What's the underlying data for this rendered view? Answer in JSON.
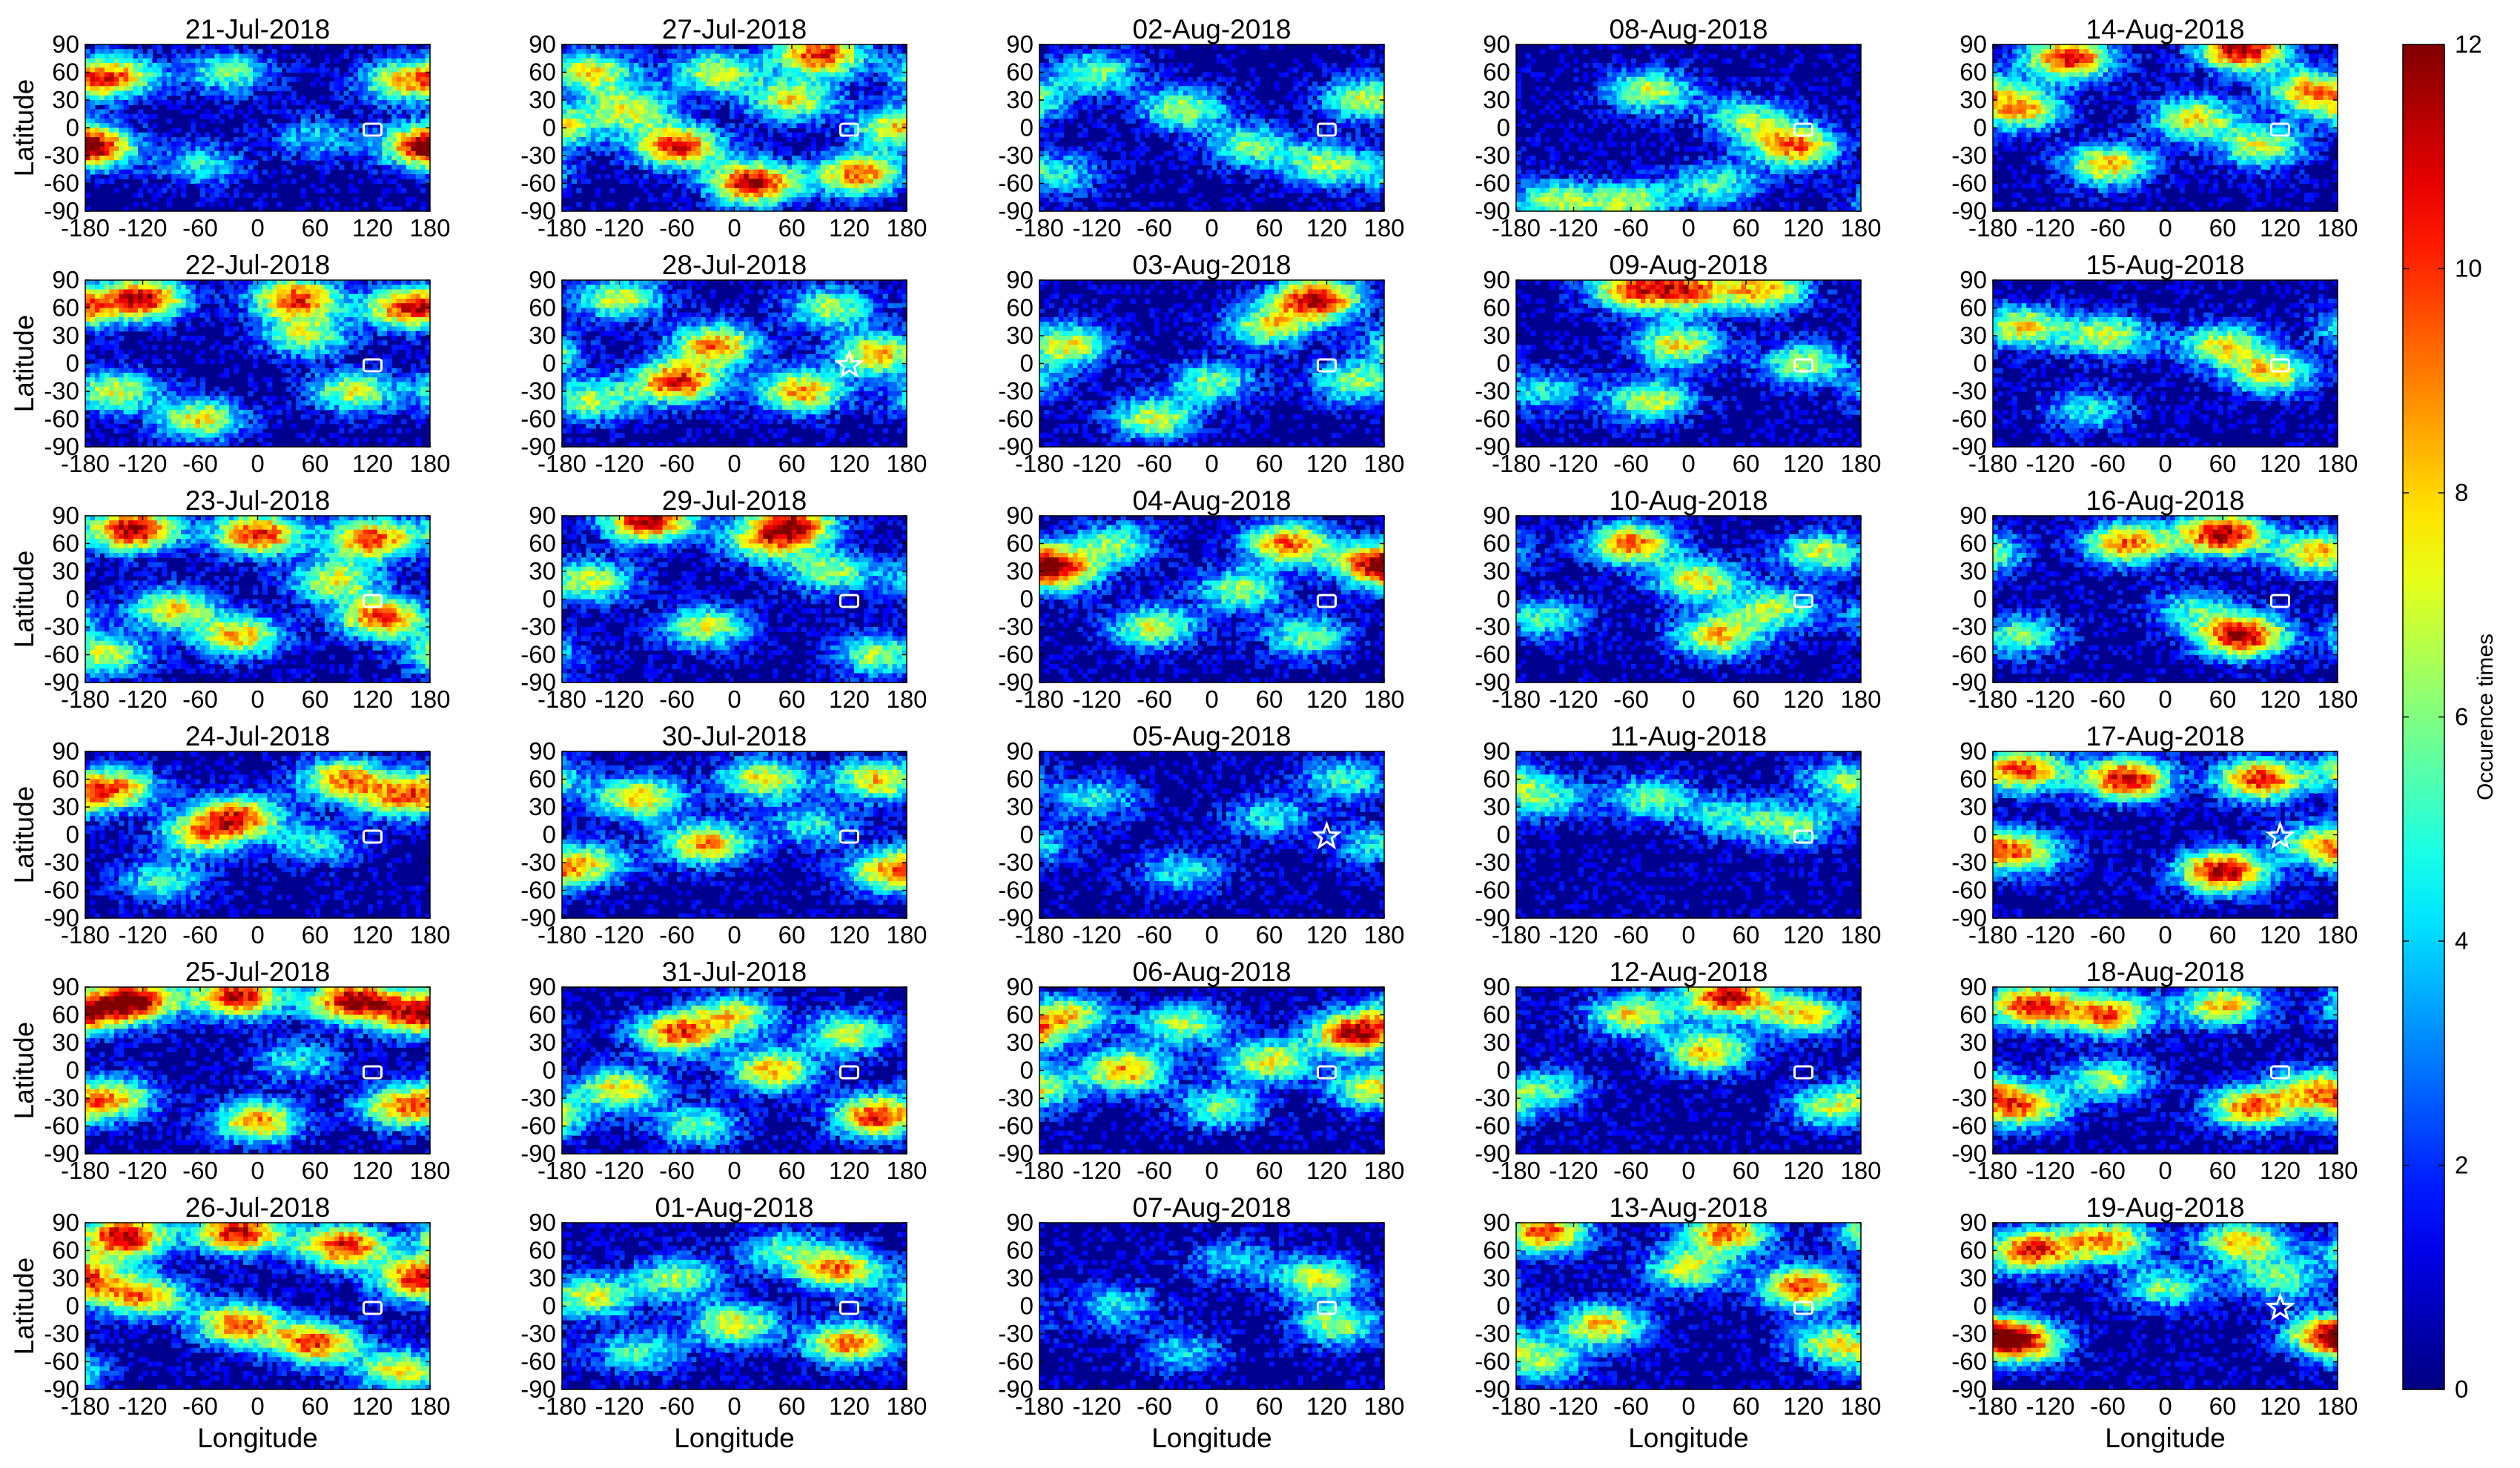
{
  "chart_data": {
    "type": "heatmap",
    "layout": "6 rows x 5 columns of small-multiple world maps, dates run down each column",
    "panels": [
      {
        "title": "21-Jul-2018",
        "marker": "rectangle",
        "hotspots": [
          [
            -150,
            55,
            0.7
          ],
          [
            -30,
            60,
            0.45
          ],
          [
            150,
            50,
            0.55
          ],
          [
            -175,
            -20,
            0.6
          ],
          [
            -60,
            -40,
            0.35
          ],
          [
            60,
            -10,
            0.3
          ],
          [
            175,
            -20,
            0.5
          ]
        ]
      },
      {
        "title": "22-Jul-2018",
        "marker": "rectangle",
        "hotspots": [
          [
            -120,
            70,
            0.9
          ],
          [
            40,
            70,
            0.8
          ],
          [
            160,
            60,
            0.85
          ],
          [
            -150,
            -30,
            0.55
          ],
          [
            -60,
            -60,
            0.6
          ],
          [
            50,
            30,
            0.5
          ],
          [
            100,
            -30,
            0.55
          ]
        ]
      },
      {
        "title": "23-Jul-2018",
        "marker": "rectangle",
        "hotspots": [
          [
            -130,
            75,
            0.95
          ],
          [
            0,
            70,
            0.85
          ],
          [
            120,
            65,
            0.8
          ],
          [
            -90,
            -10,
            0.6
          ],
          [
            -20,
            -40,
            0.65
          ],
          [
            130,
            -20,
            0.8
          ],
          [
            80,
            20,
            0.55
          ],
          [
            -160,
            -60,
            0.55
          ]
        ]
      },
      {
        "title": "24-Jul-2018",
        "marker": "rectangle",
        "hotspots": [
          [
            -150,
            50,
            0.7
          ],
          [
            -20,
            20,
            0.75
          ],
          [
            -60,
            0,
            0.55
          ],
          [
            90,
            60,
            0.7
          ],
          [
            150,
            40,
            0.6
          ],
          [
            -100,
            -50,
            0.4
          ],
          [
            60,
            -10,
            0.35
          ]
        ]
      },
      {
        "title": "25-Jul-2018",
        "marker": "rectangle",
        "hotspots": [
          [
            -130,
            75,
            0.95
          ],
          [
            -20,
            80,
            0.9
          ],
          [
            100,
            75,
            0.95
          ],
          [
            170,
            60,
            0.8
          ],
          [
            -150,
            -30,
            0.6
          ],
          [
            0,
            -55,
            0.7
          ],
          [
            150,
            -40,
            0.65
          ],
          [
            40,
            10,
            0.35
          ]
        ]
      },
      {
        "title": "26-Jul-2018",
        "marker": "rectangle",
        "hotspots": [
          [
            -140,
            75,
            0.95
          ],
          [
            -20,
            80,
            0.9
          ],
          [
            90,
            65,
            0.85
          ],
          [
            170,
            30,
            0.85
          ],
          [
            -120,
            10,
            0.7
          ],
          [
            -20,
            -20,
            0.75
          ],
          [
            60,
            -40,
            0.8
          ],
          [
            150,
            -70,
            0.6
          ]
        ]
      },
      {
        "title": "27-Jul-2018",
        "marker": "rectangle",
        "hotspots": [
          [
            -150,
            60,
            0.6
          ],
          [
            -60,
            -20,
            0.85
          ],
          [
            20,
            -60,
            0.95
          ],
          [
            90,
            80,
            0.85
          ],
          [
            130,
            -50,
            0.75
          ],
          [
            -110,
            20,
            0.55
          ],
          [
            60,
            30,
            0.6
          ],
          [
            170,
            0,
            0.6
          ],
          [
            -20,
            60,
            0.55
          ]
        ]
      },
      {
        "title": "28-Jul-2018",
        "marker": "star",
        "hotspots": [
          [
            -120,
            70,
            0.55
          ],
          [
            -60,
            -20,
            0.85
          ],
          [
            -20,
            20,
            0.7
          ],
          [
            70,
            -30,
            0.7
          ],
          [
            150,
            10,
            0.65
          ],
          [
            100,
            60,
            0.5
          ],
          [
            -150,
            -40,
            0.5
          ]
        ]
      },
      {
        "title": "29-Jul-2018",
        "marker": "rectangle",
        "hotspots": [
          [
            -90,
            85,
            0.95
          ],
          [
            60,
            80,
            0.85
          ],
          [
            -150,
            20,
            0.55
          ],
          [
            -30,
            -30,
            0.55
          ],
          [
            100,
            30,
            0.5
          ],
          [
            150,
            -60,
            0.5
          ],
          [
            30,
            60,
            0.45
          ]
        ]
      },
      {
        "title": "30-Jul-2018",
        "marker": "rectangle",
        "hotspots": [
          [
            -100,
            40,
            0.65
          ],
          [
            -30,
            -10,
            0.7
          ],
          [
            30,
            60,
            0.6
          ],
          [
            150,
            60,
            0.65
          ],
          [
            160,
            -40,
            0.6
          ],
          [
            -150,
            -30,
            0.45
          ],
          [
            80,
            10,
            0.35
          ]
        ]
      },
      {
        "title": "31-Jul-2018",
        "marker": "rectangle",
        "hotspots": [
          [
            -60,
            40,
            0.75
          ],
          [
            0,
            60,
            0.55
          ],
          [
            -120,
            -20,
            0.6
          ],
          [
            40,
            0,
            0.65
          ],
          [
            150,
            -50,
            0.85
          ],
          [
            120,
            40,
            0.55
          ],
          [
            -40,
            -60,
            0.45
          ]
        ]
      },
      {
        "title": "01-Aug-2018",
        "marker": "rectangle",
        "hotspots": [
          [
            -150,
            10,
            0.55
          ],
          [
            -60,
            30,
            0.5
          ],
          [
            0,
            -20,
            0.6
          ],
          [
            110,
            40,
            0.7
          ],
          [
            120,
            -40,
            0.75
          ],
          [
            -100,
            -50,
            0.4
          ],
          [
            50,
            60,
            0.4
          ]
        ]
      },
      {
        "title": "02-Aug-2018",
        "marker": "rectangle",
        "hotspots": [
          [
            -120,
            60,
            0.45
          ],
          [
            -30,
            20,
            0.5
          ],
          [
            40,
            -20,
            0.45
          ],
          [
            120,
            -40,
            0.5
          ],
          [
            160,
            30,
            0.55
          ],
          [
            -160,
            -50,
            0.35
          ]
        ]
      },
      {
        "title": "03-Aug-2018",
        "marker": "rectangle",
        "hotspots": [
          [
            -150,
            20,
            0.6
          ],
          [
            110,
            70,
            0.9
          ],
          [
            60,
            40,
            0.55
          ],
          [
            -60,
            -60,
            0.55
          ],
          [
            0,
            -20,
            0.45
          ],
          [
            150,
            -20,
            0.5
          ]
        ]
      },
      {
        "title": "04-Aug-2018",
        "marker": "rectangle",
        "hotspots": [
          [
            -160,
            30,
            0.6
          ],
          [
            80,
            60,
            0.75
          ],
          [
            170,
            40,
            0.65
          ],
          [
            -60,
            -30,
            0.55
          ],
          [
            30,
            10,
            0.5
          ],
          [
            100,
            -40,
            0.45
          ],
          [
            -100,
            60,
            0.45
          ]
        ]
      },
      {
        "title": "05-Aug-2018",
        "marker": "star",
        "hotspots": [
          [
            -120,
            40,
            0.35
          ],
          [
            -30,
            -40,
            0.35
          ],
          [
            60,
            20,
            0.35
          ],
          [
            140,
            60,
            0.4
          ],
          [
            170,
            -10,
            0.35
          ]
        ]
      },
      {
        "title": "06-Aug-2018",
        "marker": "rectangle",
        "hotspots": [
          [
            -90,
            0,
            0.7
          ],
          [
            -150,
            60,
            0.55
          ],
          [
            150,
            40,
            0.9
          ],
          [
            60,
            10,
            0.6
          ],
          [
            -30,
            50,
            0.5
          ],
          [
            170,
            -20,
            0.6
          ],
          [
            10,
            -40,
            0.45
          ]
        ]
      },
      {
        "title": "07-Aug-2018",
        "marker": "rectangle",
        "hotspots": [
          [
            110,
            30,
            0.55
          ],
          [
            130,
            -20,
            0.5
          ],
          [
            -100,
            0,
            0.35
          ],
          [
            20,
            50,
            0.3
          ],
          [
            -30,
            -50,
            0.3
          ]
        ]
      },
      {
        "title": "08-Aug-2018",
        "marker": "rectangle",
        "hotspots": [
          [
            -40,
            40,
            0.55
          ],
          [
            60,
            10,
            0.45
          ],
          [
            110,
            -20,
            0.75
          ],
          [
            -140,
            -80,
            0.5
          ],
          [
            -60,
            -80,
            0.5
          ],
          [
            30,
            -60,
            0.4
          ]
        ]
      },
      {
        "title": "09-Aug-2018",
        "marker": "rectangle",
        "hotspots": [
          [
            -60,
            80,
            0.7
          ],
          [
            0,
            80,
            0.7
          ],
          [
            80,
            80,
            0.65
          ],
          [
            -10,
            20,
            0.6
          ],
          [
            -40,
            -40,
            0.55
          ],
          [
            120,
            0,
            0.5
          ],
          [
            -150,
            -30,
            0.35
          ]
        ]
      },
      {
        "title": "10-Aug-2018",
        "marker": "rectangle",
        "hotspots": [
          [
            -60,
            60,
            0.75
          ],
          [
            10,
            20,
            0.6
          ],
          [
            30,
            -40,
            0.65
          ],
          [
            90,
            -10,
            0.5
          ],
          [
            140,
            50,
            0.55
          ],
          [
            -150,
            -20,
            0.4
          ]
        ]
      },
      {
        "title": "11-Aug-2018",
        "marker": "rectangle",
        "hotspots": [
          [
            -150,
            40,
            0.4
          ],
          [
            -40,
            40,
            0.45
          ],
          [
            40,
            20,
            0.35
          ],
          [
            110,
            10,
            0.45
          ],
          [
            160,
            60,
            0.4
          ]
        ]
      },
      {
        "title": "12-Aug-2018",
        "marker": "rectangle",
        "hotspots": [
          [
            40,
            80,
            0.9
          ],
          [
            -60,
            60,
            0.6
          ],
          [
            120,
            60,
            0.6
          ],
          [
            20,
            20,
            0.65
          ],
          [
            -150,
            -20,
            0.4
          ],
          [
            150,
            -40,
            0.5
          ]
        ]
      },
      {
        "title": "13-Aug-2018",
        "marker": "rectangle",
        "hotspots": [
          [
            -150,
            80,
            0.8
          ],
          [
            40,
            80,
            0.75
          ],
          [
            120,
            20,
            0.8
          ],
          [
            -90,
            -20,
            0.65
          ],
          [
            0,
            40,
            0.55
          ],
          [
            150,
            -40,
            0.55
          ],
          [
            -150,
            -60,
            0.45
          ]
        ]
      },
      {
        "title": "14-Aug-2018",
        "marker": "rectangle",
        "hotspots": [
          [
            -100,
            75,
            0.85
          ],
          [
            80,
            85,
            0.95
          ],
          [
            -150,
            20,
            0.65
          ],
          [
            -60,
            -40,
            0.65
          ],
          [
            30,
            10,
            0.6
          ],
          [
            150,
            40,
            0.65
          ],
          [
            100,
            -20,
            0.55
          ]
        ]
      },
      {
        "title": "15-Aug-2018",
        "marker": "rectangle",
        "hotspots": [
          [
            -150,
            40,
            0.6
          ],
          [
            -60,
            30,
            0.55
          ],
          [
            60,
            20,
            0.55
          ],
          [
            110,
            -10,
            0.6
          ],
          [
            -80,
            -50,
            0.35
          ]
        ]
      },
      {
        "title": "16-Aug-2018",
        "marker": "rectangle",
        "hotspots": [
          [
            60,
            70,
            0.95
          ],
          [
            -40,
            60,
            0.75
          ],
          [
            160,
            50,
            0.65
          ],
          [
            80,
            -40,
            0.95
          ],
          [
            -150,
            -40,
            0.45
          ],
          [
            30,
            -10,
            0.35
          ]
        ]
      },
      {
        "title": "17-Aug-2018",
        "marker": "star",
        "hotspots": [
          [
            -150,
            70,
            0.8
          ],
          [
            -40,
            60,
            0.9
          ],
          [
            100,
            60,
            0.85
          ],
          [
            60,
            -40,
            0.95
          ],
          [
            -150,
            -20,
            0.6
          ],
          [
            160,
            -10,
            0.5
          ]
        ]
      },
      {
        "title": "18-Aug-2018",
        "marker": "rectangle",
        "hotspots": [
          [
            -140,
            70,
            0.85
          ],
          [
            -60,
            60,
            0.75
          ],
          [
            60,
            70,
            0.65
          ],
          [
            -150,
            -40,
            0.7
          ],
          [
            90,
            -40,
            0.75
          ],
          [
            160,
            -20,
            0.6
          ],
          [
            -60,
            -10,
            0.5
          ]
        ]
      },
      {
        "title": "19-Aug-2018",
        "marker": "star",
        "hotspots": [
          [
            -140,
            60,
            0.85
          ],
          [
            -60,
            70,
            0.7
          ],
          [
            80,
            70,
            0.65
          ],
          [
            -150,
            -40,
            0.75
          ],
          [
            170,
            -30,
            0.7
          ],
          [
            0,
            20,
            0.45
          ],
          [
            120,
            30,
            0.45
          ]
        ]
      }
    ],
    "x_ticks": [
      "-180",
      "-120",
      "-60",
      "0",
      "60",
      "120",
      "180"
    ],
    "x_tick_values": [
      -180,
      -120,
      -60,
      0,
      60,
      120,
      180
    ],
    "y_ticks": [
      "90",
      "60",
      "30",
      "0",
      "-30",
      "-60",
      "-90"
    ],
    "y_tick_values": [
      90,
      60,
      30,
      0,
      -30,
      -60,
      -90
    ],
    "xlim": [
      -180,
      180
    ],
    "ylim": [
      -90,
      90
    ],
    "xlabel": "Longitude",
    "ylabel": "Latitude",
    "marker_location": {
      "lon": 120,
      "lat": -2
    },
    "colorbar": {
      "label": "Occurence times",
      "ticks": [
        "12",
        "10",
        "8",
        "6",
        "4",
        "2",
        "0"
      ],
      "tick_values": [
        12,
        10,
        8,
        6,
        4,
        2,
        0
      ],
      "range": [
        0,
        12
      ],
      "colormap": "jet"
    },
    "colors": {
      "low": "#00008f",
      "high": "#800000",
      "marker": "#ffffff",
      "axis": "#000000"
    }
  }
}
